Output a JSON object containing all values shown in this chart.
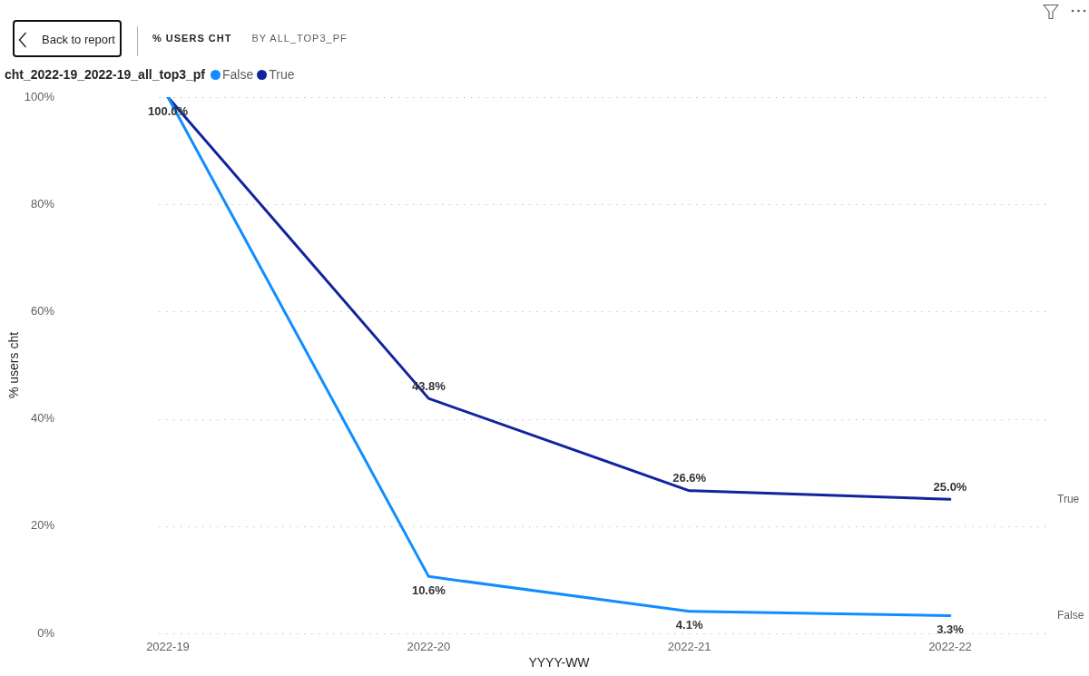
{
  "chart_data": {
    "type": "line",
    "title": "% USERS CHT",
    "subtitle": "BY ALL_TOP3_PF",
    "xlabel": "YYYY-WW",
    "ylabel": "% users cht",
    "legend_title": "cht_2022-19_2022-19_all_top3_pf",
    "annotations": [
      "Back to report"
    ],
    "categories": [
      "2022-19",
      "2022-20",
      "2022-21",
      "2022-22"
    ],
    "series": [
      {
        "name": "False",
        "color": "#118dff",
        "values": [
          100,
          10.6,
          4.1,
          3.3
        ],
        "value_labels": [
          "100.0%",
          "10.6%",
          "4.1%",
          "3.3%"
        ]
      },
      {
        "name": "True",
        "color": "#12239e",
        "values": [
          100,
          43.8,
          26.6,
          25.0
        ],
        "value_labels": [
          null,
          "43.8%",
          "26.6%",
          "25.0%"
        ]
      }
    ],
    "ylim": [
      0,
      100
    ],
    "yticks": [
      {
        "value": 0,
        "label": "0%"
      },
      {
        "value": 20,
        "label": "20%"
      },
      {
        "value": 40,
        "label": "40%"
      },
      {
        "value": 60,
        "label": "60%"
      },
      {
        "value": 80,
        "label": "80%"
      },
      {
        "value": 100,
        "label": "100%"
      }
    ],
    "grid": "y",
    "legend": "top left",
    "marker": "none",
    "line_style": "solid"
  }
}
